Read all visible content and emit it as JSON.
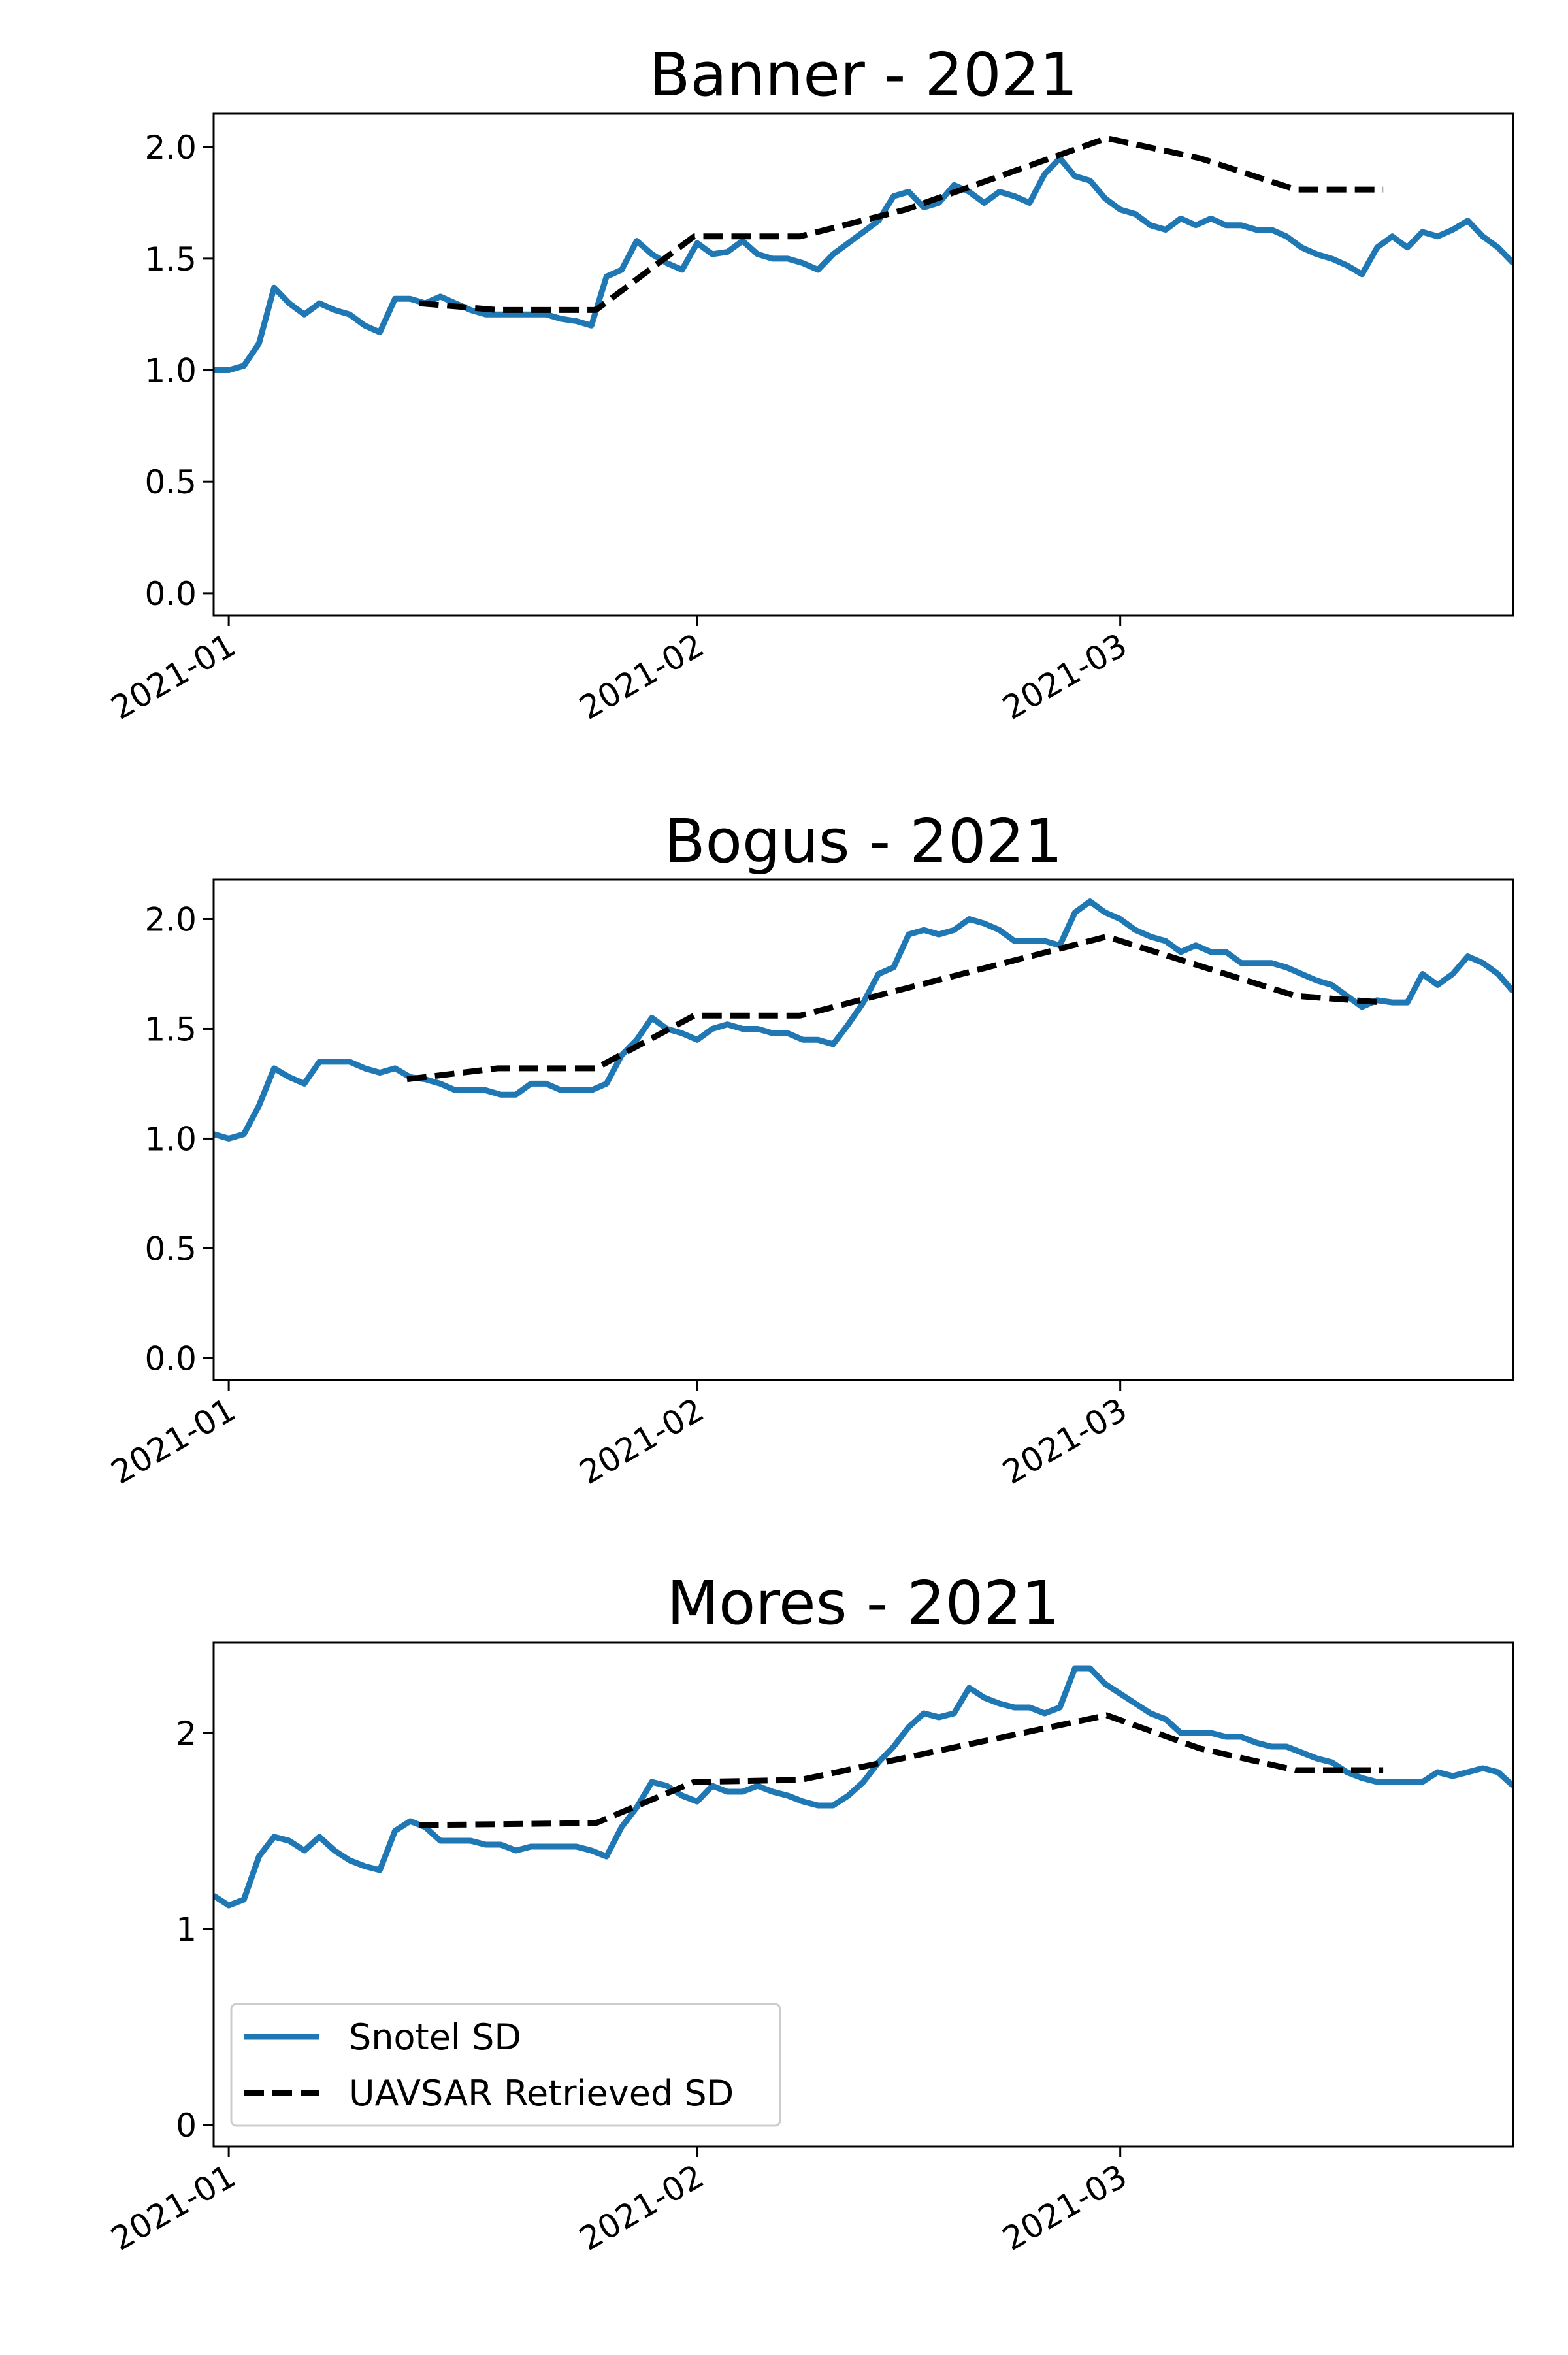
{
  "chart_data": [
    {
      "type": "line",
      "title": "Banner - 2021",
      "xlim": [
        -1,
        85
      ],
      "ylim": [
        -0.1,
        2.15
      ],
      "xticks": [
        {
          "value": 0,
          "label": "2021-01"
        },
        {
          "value": 31,
          "label": "2021-02"
        },
        {
          "value": 59,
          "label": "2021-03"
        }
      ],
      "yticks": [
        {
          "value": 0,
          "label": "0.0"
        },
        {
          "value": 0.5,
          "label": "0.5"
        },
        {
          "value": 1,
          "label": "1.0"
        },
        {
          "value": 1.5,
          "label": "1.5"
        },
        {
          "value": 2,
          "label": "2.0"
        }
      ],
      "series": [
        {
          "color": "#1f77b4",
          "style": "solid",
          "x": [
            -1,
            0,
            1,
            2,
            3,
            4,
            5,
            6,
            7,
            8,
            9,
            10,
            11,
            12,
            13,
            14,
            15,
            16,
            17,
            18,
            19,
            20,
            21,
            22,
            23,
            24,
            25,
            26,
            27,
            28,
            29,
            30,
            31,
            32,
            33,
            34,
            35,
            36,
            37,
            38,
            39,
            40,
            41,
            42,
            43,
            44,
            45,
            46,
            47,
            48,
            49,
            50,
            51,
            52,
            53,
            54,
            55,
            56,
            57,
            58,
            59,
            60,
            61,
            62,
            63,
            64,
            65,
            66,
            67,
            68,
            69,
            70,
            71,
            72,
            73,
            74,
            75,
            76,
            77,
            78,
            79,
            80,
            81,
            82,
            83,
            84,
            85
          ],
          "values": [
            1.0,
            1.0,
            1.02,
            1.12,
            1.37,
            1.3,
            1.25,
            1.3,
            1.27,
            1.25,
            1.2,
            1.17,
            1.32,
            1.32,
            1.3,
            1.33,
            1.3,
            1.27,
            1.25,
            1.25,
            1.25,
            1.25,
            1.25,
            1.23,
            1.22,
            1.2,
            1.42,
            1.45,
            1.58,
            1.52,
            1.48,
            1.45,
            1.57,
            1.52,
            1.53,
            1.58,
            1.52,
            1.5,
            1.5,
            1.48,
            1.45,
            1.52,
            1.57,
            1.62,
            1.67,
            1.78,
            1.8,
            1.73,
            1.75,
            1.83,
            1.8,
            1.75,
            1.8,
            1.78,
            1.75,
            1.88,
            1.95,
            1.87,
            1.85,
            1.77,
            1.72,
            1.7,
            1.65,
            1.63,
            1.68,
            1.65,
            1.68,
            1.65,
            1.65,
            1.63,
            1.63,
            1.6,
            1.55,
            1.52,
            1.5,
            1.47,
            1.43,
            1.55,
            1.6,
            1.55,
            1.62,
            1.6,
            1.63,
            1.67,
            1.6,
            1.55,
            1.48
          ]
        },
        {
          "color": "#000000",
          "style": "dashed",
          "x": [
            12.6,
            17.8,
            24.3,
            30.8,
            37.8,
            44.8,
            58.1,
            64.3,
            70.6,
            76.4
          ],
          "values": [
            1.3,
            1.27,
            1.27,
            1.6,
            1.6,
            1.72,
            2.04,
            1.95,
            1.81,
            1.81
          ]
        }
      ]
    },
    {
      "type": "line",
      "title": "Bogus - 2021",
      "xlim": [
        -1,
        85
      ],
      "ylim": [
        -0.1,
        2.18
      ],
      "xticks": [
        {
          "value": 0,
          "label": "2021-01"
        },
        {
          "value": 31,
          "label": "2021-02"
        },
        {
          "value": 59,
          "label": "2021-03"
        }
      ],
      "yticks": [
        {
          "value": 0,
          "label": "0.0"
        },
        {
          "value": 0.5,
          "label": "0.5"
        },
        {
          "value": 1,
          "label": "1.0"
        },
        {
          "value": 1.5,
          "label": "1.5"
        },
        {
          "value": 2,
          "label": "2.0"
        }
      ],
      "series": [
        {
          "color": "#1f77b4",
          "style": "solid",
          "x": [
            -1,
            0,
            1,
            2,
            3,
            4,
            5,
            6,
            7,
            8,
            9,
            10,
            11,
            12,
            13,
            14,
            15,
            16,
            17,
            18,
            19,
            20,
            21,
            22,
            23,
            24,
            25,
            26,
            27,
            28,
            29,
            30,
            31,
            32,
            33,
            34,
            35,
            36,
            37,
            38,
            39,
            40,
            41,
            42,
            43,
            44,
            45,
            46,
            47,
            48,
            49,
            50,
            51,
            52,
            53,
            54,
            55,
            56,
            57,
            58,
            59,
            60,
            61,
            62,
            63,
            64,
            65,
            66,
            67,
            68,
            69,
            70,
            71,
            72,
            73,
            74,
            75,
            76,
            77,
            78,
            79,
            80,
            81,
            82,
            83,
            84,
            85
          ],
          "values": [
            1.02,
            1.0,
            1.02,
            1.15,
            1.32,
            1.28,
            1.25,
            1.35,
            1.35,
            1.35,
            1.32,
            1.3,
            1.32,
            1.28,
            1.27,
            1.25,
            1.22,
            1.22,
            1.22,
            1.2,
            1.2,
            1.25,
            1.25,
            1.22,
            1.22,
            1.22,
            1.25,
            1.38,
            1.45,
            1.55,
            1.5,
            1.48,
            1.45,
            1.5,
            1.52,
            1.5,
            1.5,
            1.48,
            1.48,
            1.45,
            1.45,
            1.43,
            1.52,
            1.62,
            1.75,
            1.78,
            1.93,
            1.95,
            1.93,
            1.95,
            2.0,
            1.98,
            1.95,
            1.9,
            1.9,
            1.9,
            1.88,
            2.03,
            2.08,
            2.03,
            2.0,
            1.95,
            1.92,
            1.9,
            1.85,
            1.88,
            1.85,
            1.85,
            1.8,
            1.8,
            1.8,
            1.78,
            1.75,
            1.72,
            1.7,
            1.65,
            1.6,
            1.63,
            1.62,
            1.62,
            1.75,
            1.7,
            1.75,
            1.83,
            1.8,
            1.75,
            1.67
          ]
        },
        {
          "color": "#000000",
          "style": "dashed",
          "x": [
            11.8,
            17.8,
            24.3,
            30.8,
            37.8,
            58.1,
            70.6,
            76.4
          ],
          "values": [
            1.27,
            1.32,
            1.32,
            1.56,
            1.56,
            1.92,
            1.65,
            1.62
          ]
        }
      ]
    },
    {
      "type": "line",
      "title": "Mores - 2021",
      "xlim": [
        -1,
        85
      ],
      "ylim": [
        -0.11,
        2.46
      ],
      "xticks": [
        {
          "value": 0,
          "label": "2021-01"
        },
        {
          "value": 31,
          "label": "2021-02"
        },
        {
          "value": 59,
          "label": "2021-03"
        }
      ],
      "yticks": [
        0,
        1,
        2
      ],
      "legend": "lower left",
      "series": [
        {
          "name": "Snotel SD",
          "color": "#1f77b4",
          "style": "solid",
          "x": [
            -1,
            0,
            1,
            2,
            3,
            4,
            5,
            6,
            7,
            8,
            9,
            10,
            11,
            12,
            13,
            14,
            15,
            16,
            17,
            18,
            19,
            20,
            21,
            22,
            23,
            24,
            25,
            26,
            27,
            28,
            29,
            30,
            31,
            32,
            33,
            34,
            35,
            36,
            37,
            38,
            39,
            40,
            41,
            42,
            43,
            44,
            45,
            46,
            47,
            48,
            49,
            50,
            51,
            52,
            53,
            54,
            55,
            56,
            57,
            58,
            59,
            60,
            61,
            62,
            63,
            64,
            65,
            66,
            67,
            68,
            69,
            70,
            71,
            72,
            73,
            74,
            75,
            76,
            77,
            78,
            79,
            80,
            81,
            82,
            83,
            84,
            85
          ],
          "values": [
            1.17,
            1.12,
            1.15,
            1.37,
            1.47,
            1.45,
            1.4,
            1.47,
            1.4,
            1.35,
            1.32,
            1.3,
            1.5,
            1.55,
            1.52,
            1.45,
            1.45,
            1.45,
            1.43,
            1.43,
            1.4,
            1.42,
            1.42,
            1.42,
            1.42,
            1.4,
            1.37,
            1.52,
            1.62,
            1.75,
            1.73,
            1.68,
            1.65,
            1.73,
            1.7,
            1.7,
            1.73,
            1.7,
            1.68,
            1.65,
            1.63,
            1.63,
            1.68,
            1.75,
            1.85,
            1.93,
            2.03,
            2.1,
            2.08,
            2.1,
            2.23,
            2.18,
            2.15,
            2.13,
            2.13,
            2.1,
            2.13,
            2.33,
            2.33,
            2.25,
            2.2,
            2.15,
            2.1,
            2.07,
            2.0,
            2.0,
            2.0,
            1.98,
            1.98,
            1.95,
            1.93,
            1.93,
            1.9,
            1.87,
            1.85,
            1.8,
            1.77,
            1.75,
            1.75,
            1.75,
            1.75,
            1.8,
            1.78,
            1.8,
            1.82,
            1.8,
            1.73
          ]
        },
        {
          "name": "UAVSAR Retrieved SD",
          "color": "#000000",
          "style": "dashed",
          "x": [
            12.6,
            24.3,
            30.8,
            37.8,
            58.1,
            64.3,
            70.6,
            76.4
          ],
          "values": [
            1.53,
            1.54,
            1.75,
            1.76,
            2.09,
            1.92,
            1.81,
            1.81
          ]
        }
      ]
    }
  ]
}
